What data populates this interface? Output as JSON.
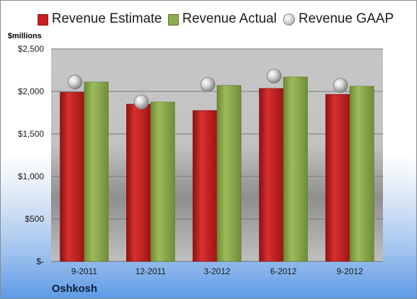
{
  "chart_data": {
    "type": "bar",
    "title": "",
    "units_label": "$millions",
    "footer_label": "Oshkosh",
    "categories": [
      "9-2011",
      "12-2011",
      "3-2012",
      "6-2012",
      "9-2012"
    ],
    "series": [
      {
        "name": "Revenue Estimate",
        "kind": "bar",
        "color": "#cc1f1f",
        "values": [
          1990,
          1850,
          1775,
          2035,
          1965
        ]
      },
      {
        "name": "Revenue Actual",
        "kind": "bar",
        "color": "#8fae4e",
        "values": [
          2110,
          1875,
          2070,
          2170,
          2060
        ]
      },
      {
        "name": "Revenue GAAP",
        "kind": "marker",
        "color": "#c0c0c0",
        "values": [
          2110,
          1875,
          2080,
          2180,
          2070
        ]
      }
    ],
    "y_ticks": [
      {
        "value": 0,
        "label": "$-"
      },
      {
        "value": 500,
        "label": "$500"
      },
      {
        "value": 1000,
        "label": "$1,000"
      },
      {
        "value": 1500,
        "label": "$1,500"
      },
      {
        "value": 2000,
        "label": "$2,000"
      },
      {
        "value": 2500,
        "label": "$2,500"
      }
    ],
    "ylim": [
      0,
      2500
    ],
    "grid": true,
    "legend_position": "top"
  }
}
